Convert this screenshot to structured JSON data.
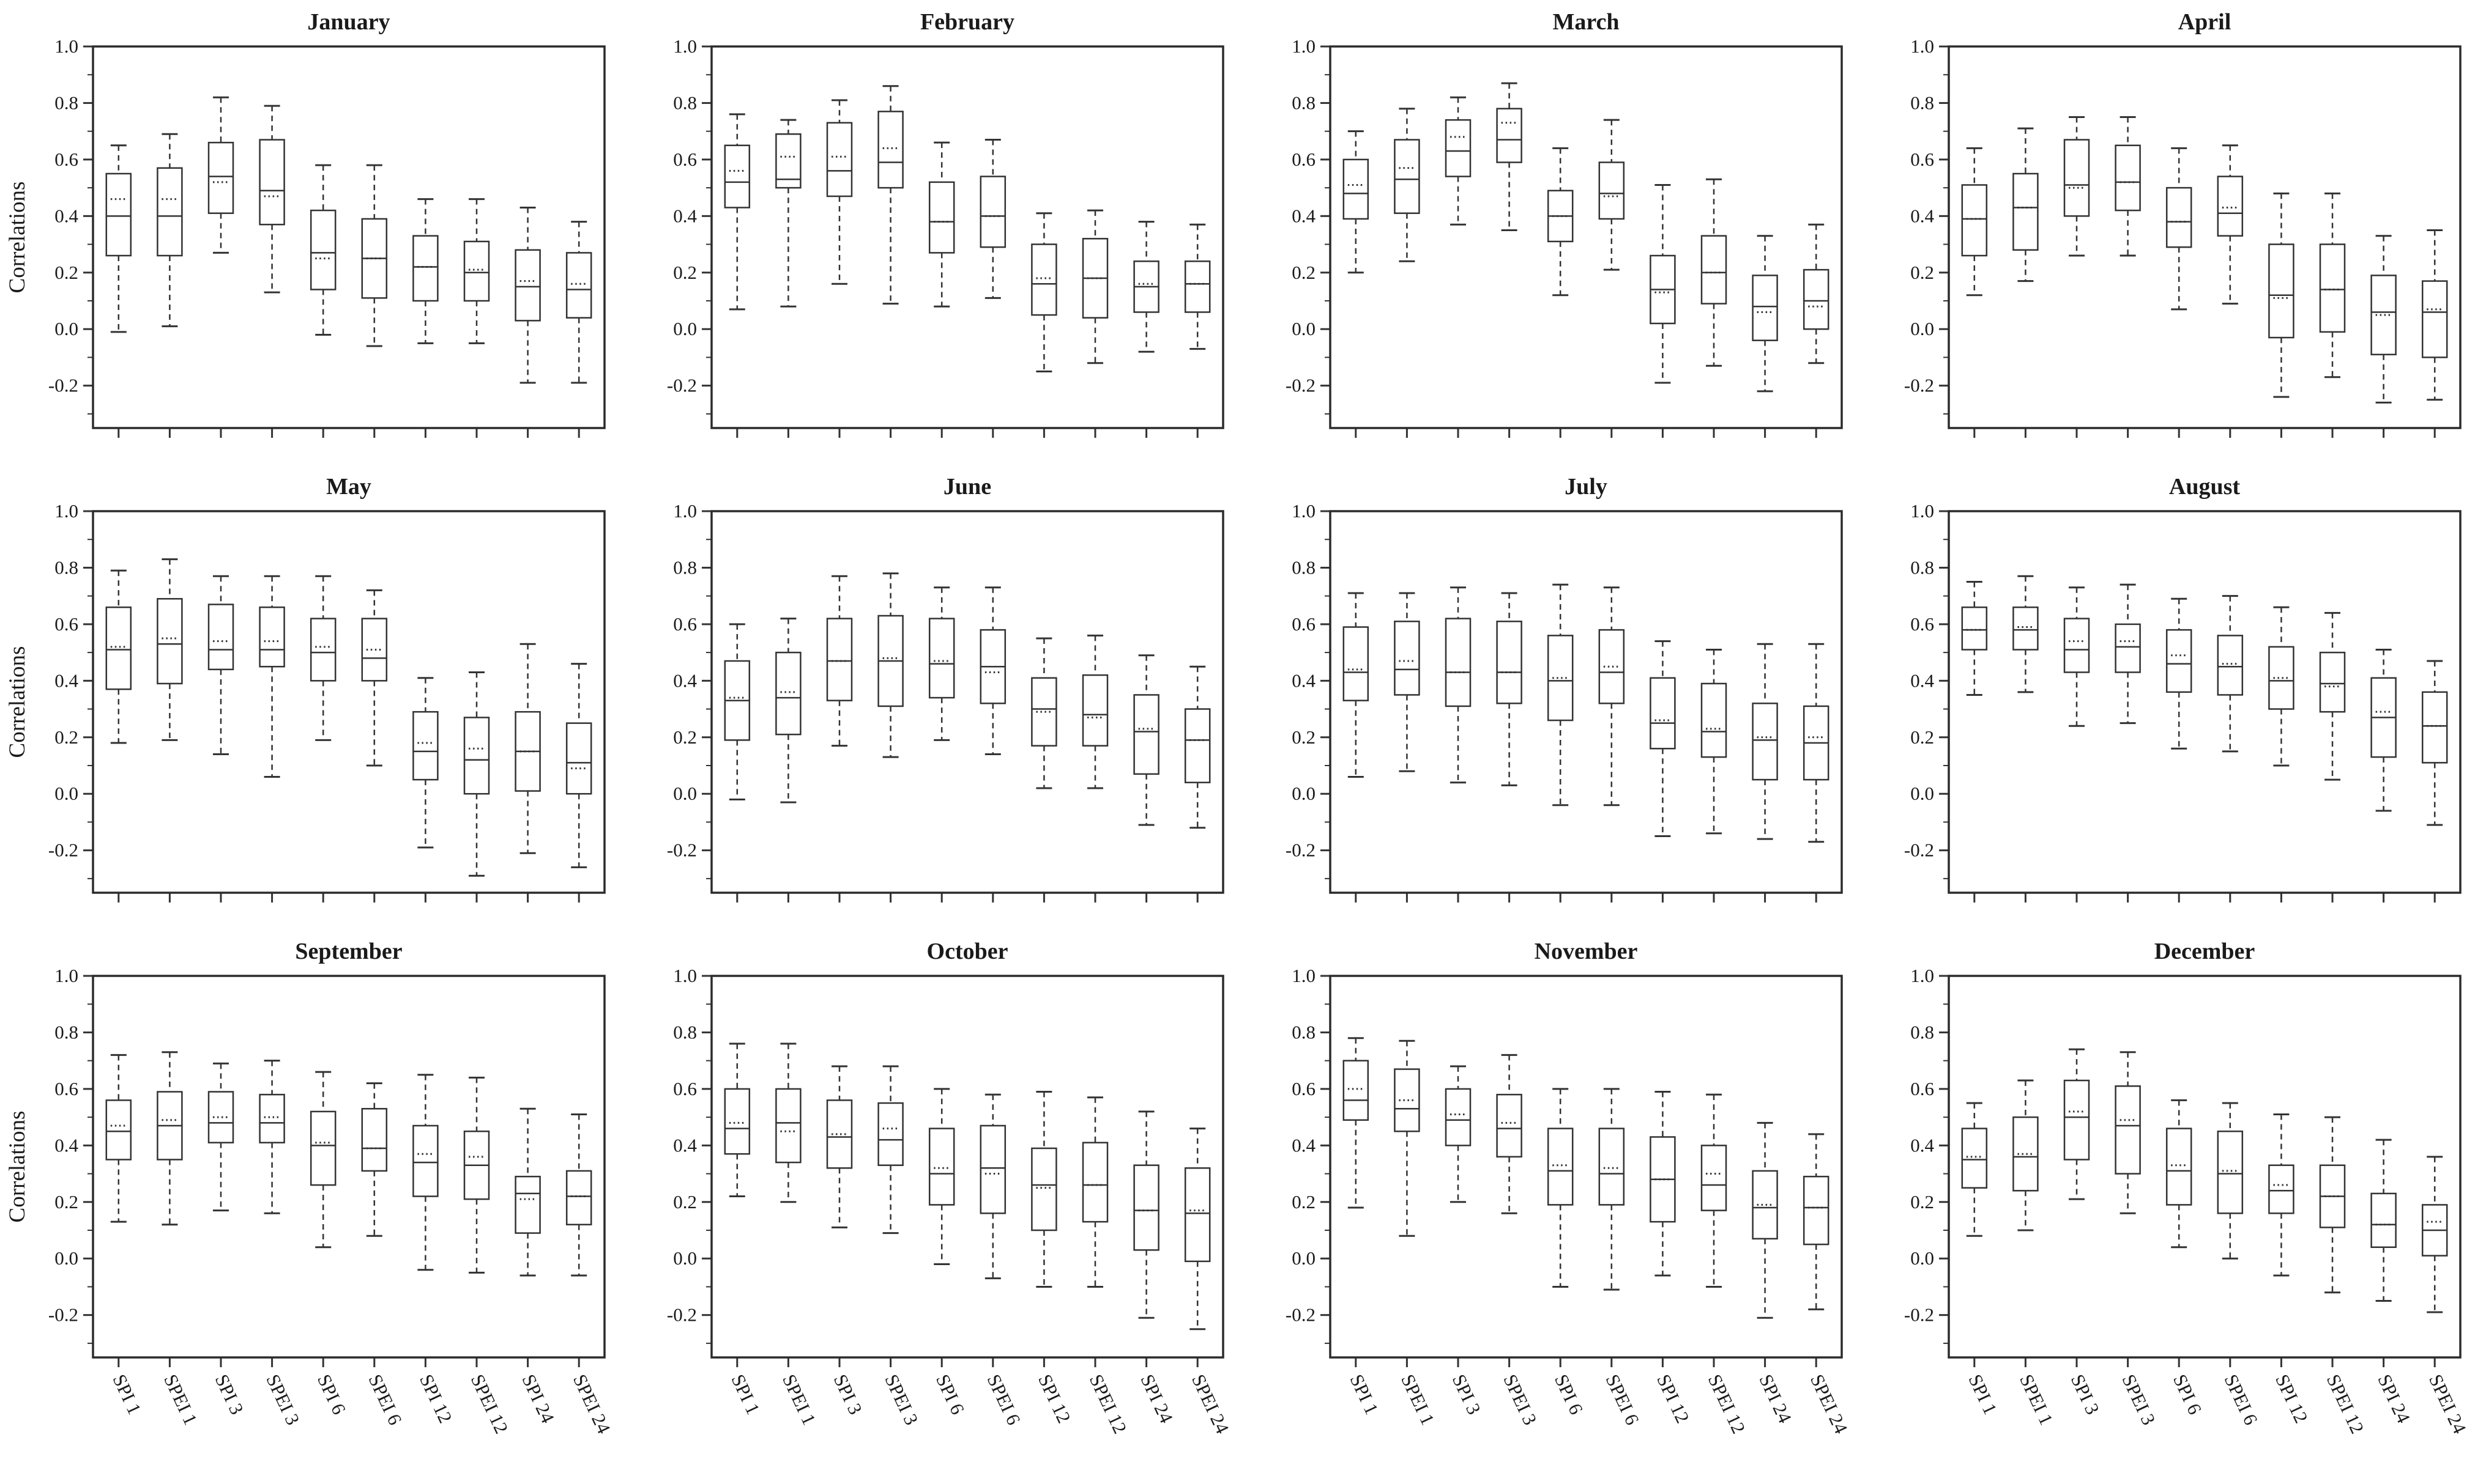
{
  "figure": {
    "ylabel": "Correlations",
    "y_tick_labels": [
      "1.0",
      "0.8",
      "0.6",
      "0.4",
      "0.2",
      "0.0",
      "-0.2"
    ],
    "y_ticks": [
      1.0,
      0.8,
      0.6,
      0.4,
      0.2,
      0.0,
      -0.2
    ],
    "y_minor_ticks": [
      0.9,
      0.7,
      0.5,
      0.3,
      0.1,
      -0.1,
      -0.3
    ],
    "ylim": [
      -0.35,
      1.0
    ],
    "grid": "off",
    "categories": [
      "SPI 1",
      "SPEI 1",
      "SPI 3",
      "SPEI 3",
      "SPI 6",
      "SPEI 6",
      "SPI 12",
      "SPEI 12",
      "SPI 24",
      "SPEI 24"
    ],
    "stats_order": [
      "whisker_low",
      "q1",
      "median",
      "mean",
      "q3",
      "whisker_high"
    ],
    "line_color": "#333333",
    "text_color": "#1a1a1a"
  },
  "chart_data": [
    {
      "type": "box",
      "title": "January",
      "stats": [
        [
          -0.01,
          0.26,
          0.4,
          0.46,
          0.55,
          0.65
        ],
        [
          0.01,
          0.26,
          0.4,
          0.46,
          0.57,
          0.69
        ],
        [
          0.27,
          0.41,
          0.54,
          0.52,
          0.66,
          0.82
        ],
        [
          0.13,
          0.37,
          0.49,
          0.47,
          0.67,
          0.79
        ],
        [
          -0.02,
          0.14,
          0.27,
          0.25,
          0.42,
          0.58
        ],
        [
          -0.06,
          0.11,
          0.25,
          0.25,
          0.39,
          0.58
        ],
        [
          -0.05,
          0.1,
          0.22,
          0.22,
          0.33,
          0.46
        ],
        [
          -0.05,
          0.1,
          0.2,
          0.21,
          0.31,
          0.46
        ],
        [
          -0.19,
          0.03,
          0.15,
          0.17,
          0.28,
          0.43
        ],
        [
          -0.19,
          0.04,
          0.14,
          0.16,
          0.27,
          0.38
        ]
      ]
    },
    {
      "type": "box",
      "title": "February",
      "stats": [
        [
          0.07,
          0.43,
          0.52,
          0.56,
          0.65,
          0.76
        ],
        [
          0.08,
          0.5,
          0.53,
          0.61,
          0.69,
          0.74
        ],
        [
          0.16,
          0.47,
          0.56,
          0.61,
          0.73,
          0.81
        ],
        [
          0.09,
          0.5,
          0.59,
          0.64,
          0.77,
          0.86
        ],
        [
          0.08,
          0.27,
          0.38,
          0.38,
          0.52,
          0.66
        ],
        [
          0.11,
          0.29,
          0.4,
          0.4,
          0.54,
          0.67
        ],
        [
          -0.15,
          0.05,
          0.16,
          0.18,
          0.3,
          0.41
        ],
        [
          -0.12,
          0.04,
          0.18,
          0.18,
          0.32,
          0.42
        ],
        [
          -0.08,
          0.06,
          0.15,
          0.16,
          0.24,
          0.38
        ],
        [
          -0.07,
          0.06,
          0.16,
          0.16,
          0.24,
          0.37
        ]
      ]
    },
    {
      "type": "box",
      "title": "March",
      "stats": [
        [
          0.2,
          0.39,
          0.48,
          0.51,
          0.6,
          0.7
        ],
        [
          0.24,
          0.41,
          0.53,
          0.57,
          0.67,
          0.78
        ],
        [
          0.37,
          0.54,
          0.63,
          0.68,
          0.74,
          0.82
        ],
        [
          0.35,
          0.59,
          0.67,
          0.73,
          0.78,
          0.87
        ],
        [
          0.12,
          0.31,
          0.4,
          0.4,
          0.49,
          0.64
        ],
        [
          0.21,
          0.39,
          0.48,
          0.47,
          0.59,
          0.74
        ],
        [
          -0.19,
          0.02,
          0.14,
          0.13,
          0.26,
          0.51
        ],
        [
          -0.13,
          0.09,
          0.2,
          0.2,
          0.33,
          0.53
        ],
        [
          -0.22,
          -0.04,
          0.08,
          0.06,
          0.19,
          0.33
        ],
        [
          -0.12,
          0.0,
          0.1,
          0.08,
          0.21,
          0.37
        ]
      ]
    },
    {
      "type": "box",
      "title": "April",
      "stats": [
        [
          0.12,
          0.26,
          0.39,
          0.39,
          0.51,
          0.64
        ],
        [
          0.17,
          0.28,
          0.43,
          0.43,
          0.55,
          0.71
        ],
        [
          0.26,
          0.4,
          0.51,
          0.5,
          0.67,
          0.75
        ],
        [
          0.26,
          0.42,
          0.52,
          0.52,
          0.65,
          0.75
        ],
        [
          0.07,
          0.29,
          0.38,
          0.38,
          0.5,
          0.64
        ],
        [
          0.09,
          0.33,
          0.41,
          0.43,
          0.54,
          0.65
        ],
        [
          -0.24,
          -0.03,
          0.12,
          0.11,
          0.3,
          0.48
        ],
        [
          -0.17,
          -0.01,
          0.14,
          0.14,
          0.3,
          0.48
        ],
        [
          -0.26,
          -0.09,
          0.06,
          0.05,
          0.19,
          0.33
        ],
        [
          -0.25,
          -0.1,
          0.06,
          0.07,
          0.17,
          0.35
        ]
      ]
    },
    {
      "type": "box",
      "title": "May",
      "stats": [
        [
          0.18,
          0.37,
          0.51,
          0.52,
          0.66,
          0.79
        ],
        [
          0.19,
          0.39,
          0.53,
          0.55,
          0.69,
          0.83
        ],
        [
          0.14,
          0.44,
          0.51,
          0.54,
          0.67,
          0.77
        ],
        [
          0.06,
          0.45,
          0.51,
          0.54,
          0.66,
          0.77
        ],
        [
          0.19,
          0.4,
          0.5,
          0.52,
          0.62,
          0.77
        ],
        [
          0.1,
          0.4,
          0.48,
          0.51,
          0.62,
          0.72
        ],
        [
          -0.19,
          0.05,
          0.15,
          0.18,
          0.29,
          0.41
        ],
        [
          -0.29,
          0.0,
          0.12,
          0.16,
          0.27,
          0.43
        ],
        [
          -0.21,
          0.01,
          0.15,
          0.15,
          0.29,
          0.53
        ],
        [
          -0.26,
          0.0,
          0.11,
          0.09,
          0.25,
          0.46
        ]
      ]
    },
    {
      "type": "box",
      "title": "June",
      "stats": [
        [
          -0.02,
          0.19,
          0.33,
          0.34,
          0.47,
          0.6
        ],
        [
          -0.03,
          0.21,
          0.34,
          0.36,
          0.5,
          0.62
        ],
        [
          0.17,
          0.33,
          0.47,
          0.47,
          0.62,
          0.77
        ],
        [
          0.13,
          0.31,
          0.47,
          0.48,
          0.63,
          0.78
        ],
        [
          0.19,
          0.34,
          0.46,
          0.47,
          0.62,
          0.73
        ],
        [
          0.14,
          0.32,
          0.45,
          0.43,
          0.58,
          0.73
        ],
        [
          0.02,
          0.17,
          0.3,
          0.29,
          0.41,
          0.55
        ],
        [
          0.02,
          0.17,
          0.28,
          0.27,
          0.42,
          0.56
        ],
        [
          -0.11,
          0.07,
          0.22,
          0.23,
          0.35,
          0.49
        ],
        [
          -0.12,
          0.04,
          0.19,
          0.19,
          0.3,
          0.45
        ]
      ]
    },
    {
      "type": "box",
      "title": "July",
      "stats": [
        [
          0.06,
          0.33,
          0.43,
          0.44,
          0.59,
          0.71
        ],
        [
          0.08,
          0.35,
          0.44,
          0.47,
          0.61,
          0.71
        ],
        [
          0.04,
          0.31,
          0.43,
          0.43,
          0.62,
          0.73
        ],
        [
          0.03,
          0.32,
          0.43,
          0.43,
          0.61,
          0.71
        ],
        [
          -0.04,
          0.26,
          0.4,
          0.41,
          0.56,
          0.74
        ],
        [
          -0.04,
          0.32,
          0.43,
          0.45,
          0.58,
          0.73
        ],
        [
          -0.15,
          0.16,
          0.25,
          0.26,
          0.41,
          0.54
        ],
        [
          -0.14,
          0.13,
          0.22,
          0.23,
          0.39,
          0.51
        ],
        [
          -0.16,
          0.05,
          0.19,
          0.2,
          0.32,
          0.53
        ],
        [
          -0.17,
          0.05,
          0.18,
          0.2,
          0.31,
          0.53
        ]
      ]
    },
    {
      "type": "box",
      "title": "August",
      "stats": [
        [
          0.35,
          0.51,
          0.58,
          0.58,
          0.66,
          0.75
        ],
        [
          0.36,
          0.51,
          0.58,
          0.59,
          0.66,
          0.77
        ],
        [
          0.24,
          0.43,
          0.51,
          0.54,
          0.62,
          0.73
        ],
        [
          0.25,
          0.43,
          0.52,
          0.54,
          0.6,
          0.74
        ],
        [
          0.16,
          0.36,
          0.46,
          0.49,
          0.58,
          0.69
        ],
        [
          0.15,
          0.35,
          0.45,
          0.46,
          0.56,
          0.7
        ],
        [
          0.1,
          0.3,
          0.4,
          0.41,
          0.52,
          0.66
        ],
        [
          0.05,
          0.29,
          0.39,
          0.38,
          0.5,
          0.64
        ],
        [
          -0.06,
          0.13,
          0.27,
          0.29,
          0.41,
          0.51
        ],
        [
          -0.11,
          0.11,
          0.24,
          0.24,
          0.36,
          0.47
        ]
      ]
    },
    {
      "type": "box",
      "title": "September",
      "stats": [
        [
          0.13,
          0.35,
          0.45,
          0.47,
          0.56,
          0.72
        ],
        [
          0.12,
          0.35,
          0.47,
          0.49,
          0.59,
          0.73
        ],
        [
          0.17,
          0.41,
          0.48,
          0.5,
          0.59,
          0.69
        ],
        [
          0.16,
          0.41,
          0.48,
          0.5,
          0.58,
          0.7
        ],
        [
          0.04,
          0.26,
          0.4,
          0.41,
          0.52,
          0.66
        ],
        [
          0.08,
          0.31,
          0.39,
          0.39,
          0.53,
          0.62
        ],
        [
          -0.04,
          0.22,
          0.34,
          0.37,
          0.47,
          0.65
        ],
        [
          -0.05,
          0.21,
          0.33,
          0.36,
          0.45,
          0.64
        ],
        [
          -0.06,
          0.09,
          0.23,
          0.21,
          0.29,
          0.53
        ],
        [
          -0.06,
          0.12,
          0.22,
          0.22,
          0.31,
          0.51
        ]
      ]
    },
    {
      "type": "box",
      "title": "October",
      "stats": [
        [
          0.22,
          0.37,
          0.46,
          0.48,
          0.6,
          0.76
        ],
        [
          0.2,
          0.34,
          0.48,
          0.45,
          0.6,
          0.76
        ],
        [
          0.11,
          0.32,
          0.43,
          0.44,
          0.56,
          0.68
        ],
        [
          0.09,
          0.33,
          0.42,
          0.46,
          0.55,
          0.68
        ],
        [
          -0.02,
          0.19,
          0.3,
          0.32,
          0.46,
          0.6
        ],
        [
          -0.07,
          0.16,
          0.32,
          0.3,
          0.47,
          0.58
        ],
        [
          -0.1,
          0.1,
          0.26,
          0.25,
          0.39,
          0.59
        ],
        [
          -0.1,
          0.13,
          0.26,
          0.26,
          0.41,
          0.57
        ],
        [
          -0.21,
          0.03,
          0.17,
          0.17,
          0.33,
          0.52
        ],
        [
          -0.25,
          -0.01,
          0.16,
          0.17,
          0.32,
          0.46
        ]
      ]
    },
    {
      "type": "box",
      "title": "November",
      "stats": [
        [
          0.18,
          0.49,
          0.56,
          0.6,
          0.7,
          0.78
        ],
        [
          0.08,
          0.45,
          0.53,
          0.56,
          0.67,
          0.77
        ],
        [
          0.2,
          0.4,
          0.49,
          0.51,
          0.6,
          0.68
        ],
        [
          0.16,
          0.36,
          0.46,
          0.48,
          0.58,
          0.72
        ],
        [
          -0.1,
          0.19,
          0.31,
          0.33,
          0.46,
          0.6
        ],
        [
          -0.11,
          0.19,
          0.3,
          0.32,
          0.46,
          0.6
        ],
        [
          -0.06,
          0.13,
          0.28,
          0.28,
          0.43,
          0.59
        ],
        [
          -0.1,
          0.17,
          0.26,
          0.3,
          0.4,
          0.58
        ],
        [
          -0.21,
          0.07,
          0.18,
          0.19,
          0.31,
          0.48
        ],
        [
          -0.18,
          0.05,
          0.18,
          0.18,
          0.29,
          0.44
        ]
      ]
    },
    {
      "type": "box",
      "title": "December",
      "stats": [
        [
          0.08,
          0.25,
          0.35,
          0.36,
          0.46,
          0.55
        ],
        [
          0.1,
          0.24,
          0.36,
          0.37,
          0.5,
          0.63
        ],
        [
          0.21,
          0.35,
          0.5,
          0.52,
          0.63,
          0.74
        ],
        [
          0.16,
          0.3,
          0.47,
          0.49,
          0.61,
          0.73
        ],
        [
          0.04,
          0.19,
          0.31,
          0.33,
          0.46,
          0.56
        ],
        [
          0.0,
          0.16,
          0.3,
          0.31,
          0.45,
          0.55
        ],
        [
          -0.06,
          0.16,
          0.24,
          0.26,
          0.33,
          0.51
        ],
        [
          -0.12,
          0.11,
          0.22,
          0.22,
          0.33,
          0.5
        ],
        [
          -0.15,
          0.04,
          0.12,
          0.12,
          0.23,
          0.42
        ],
        [
          -0.19,
          0.01,
          0.1,
          0.13,
          0.19,
          0.36
        ]
      ]
    }
  ]
}
